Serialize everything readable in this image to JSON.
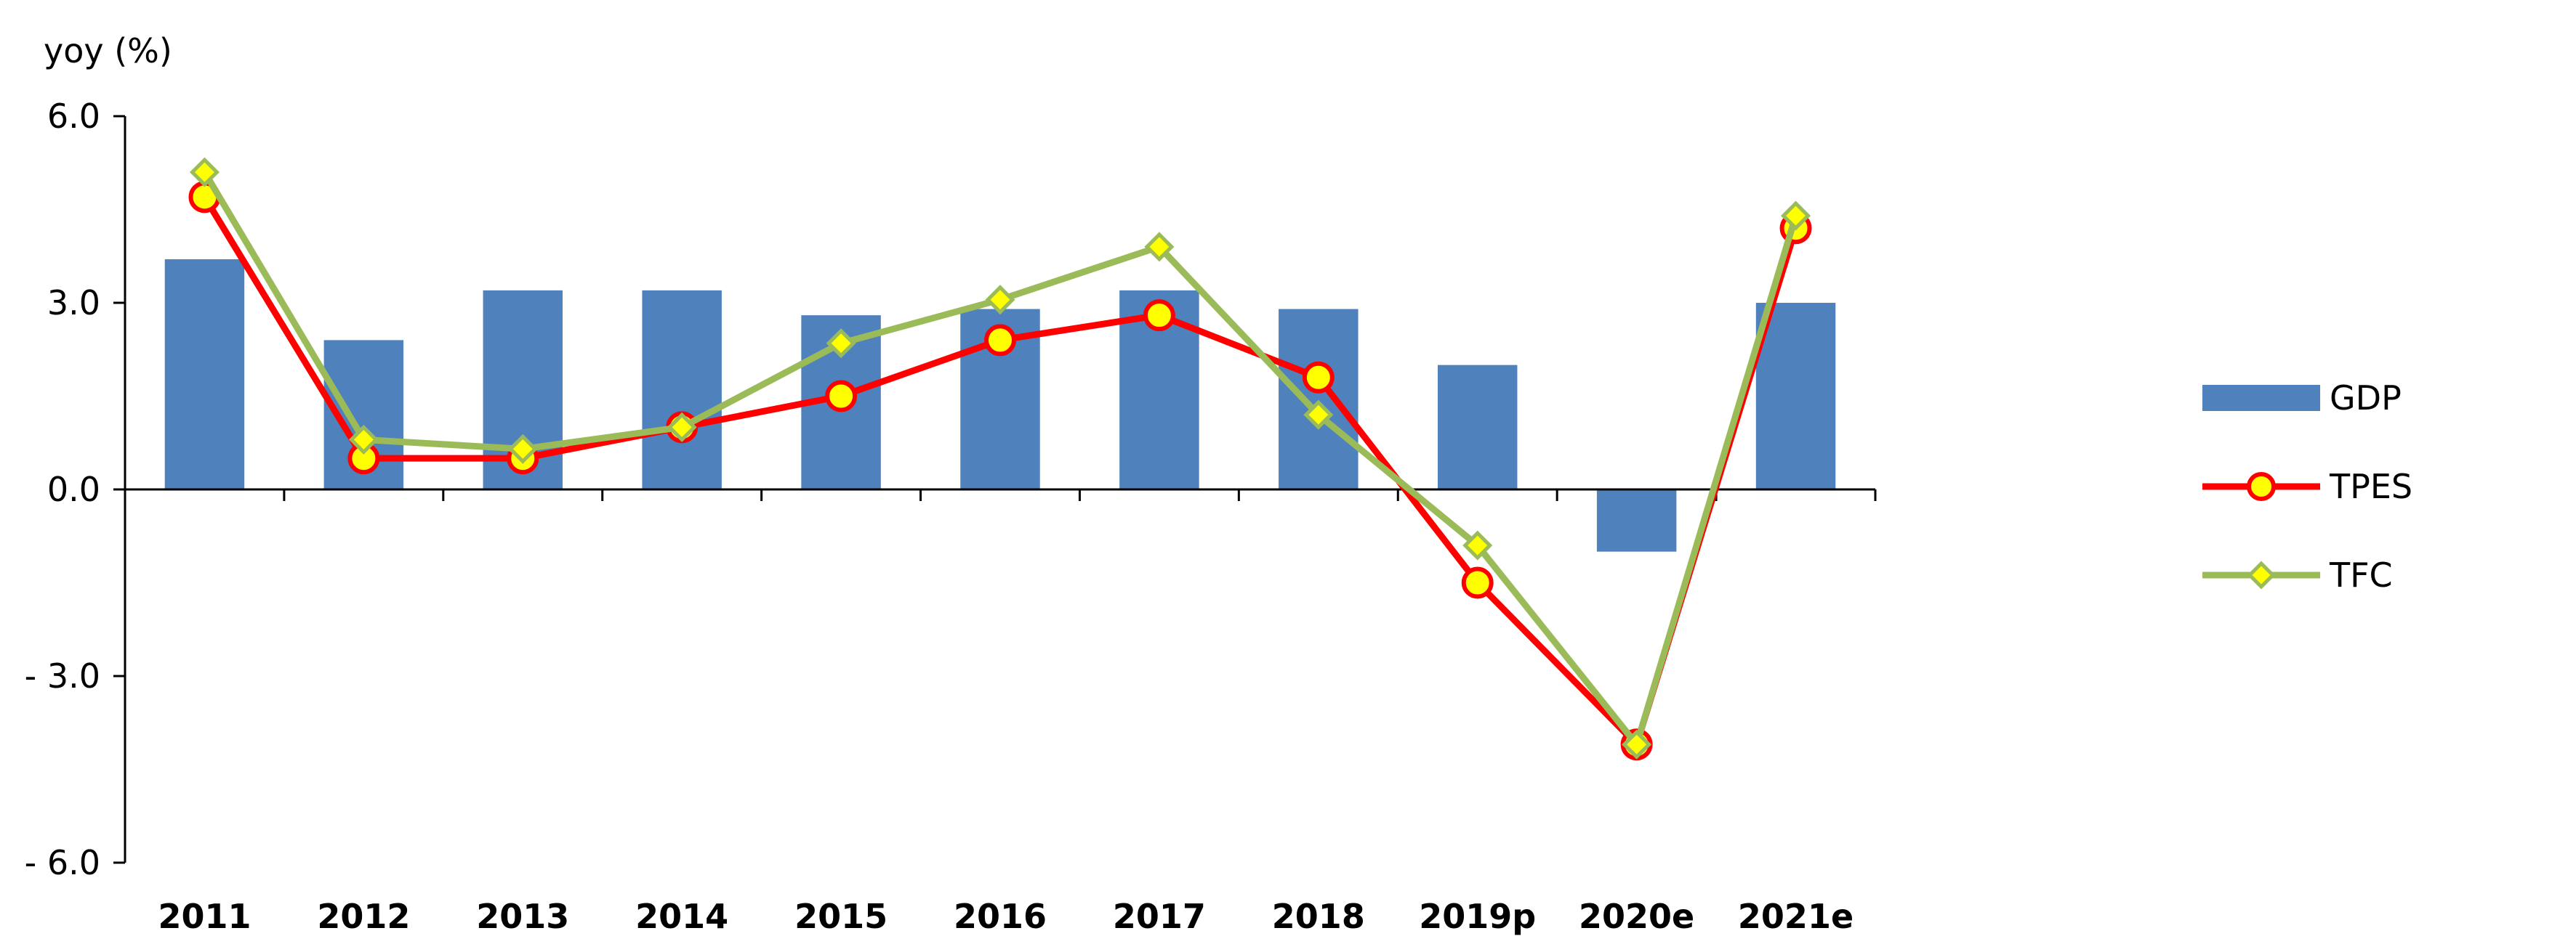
{
  "colors": {
    "gdp_bar": "#4f81bd",
    "tpes_line": "#ff0000",
    "tpes_marker_fill": "#ffff00",
    "tfc_line": "#9bbb59",
    "tfc_marker_fill": "#ffff00",
    "axis": "#000000"
  },
  "chart_data": {
    "type": "bar",
    "y_unit_label": "yoy (%)",
    "categories": [
      "2011",
      "2012",
      "2013",
      "2014",
      "2015",
      "2016",
      "2017",
      "2018",
      "2019p",
      "2020e",
      "2021e"
    ],
    "y_ticks": [
      "6.0",
      "3.0",
      "0.0",
      "- 3.0",
      "- 6.0"
    ],
    "ylim": [
      -6.0,
      6.0
    ],
    "legend_position": "right",
    "series": [
      {
        "name": "GDP",
        "type": "bar",
        "values": [
          3.7,
          2.4,
          3.2,
          3.2,
          2.8,
          2.9,
          3.2,
          2.9,
          2.0,
          -1.0,
          3.0
        ]
      },
      {
        "name": "TPES",
        "type": "line",
        "marker": "circle",
        "values": [
          4.7,
          0.5,
          0.5,
          1.0,
          1.5,
          2.4,
          2.8,
          1.8,
          -1.5,
          -4.1,
          4.2
        ]
      },
      {
        "name": "TFC",
        "type": "line",
        "marker": "diamond",
        "values": [
          5.1,
          0.8,
          0.65,
          1.0,
          2.35,
          3.05,
          3.9,
          1.2,
          -0.9,
          -4.1,
          4.4
        ]
      }
    ]
  }
}
